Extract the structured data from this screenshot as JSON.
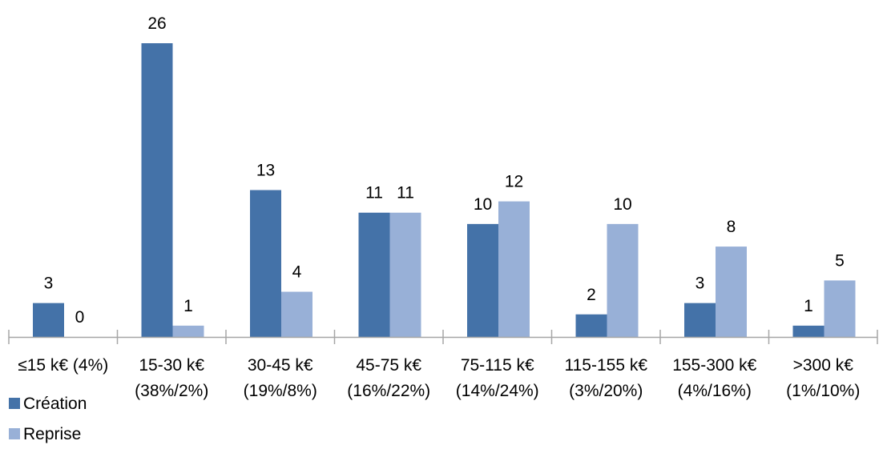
{
  "chart_data": {
    "type": "bar",
    "categories": [
      [
        "≤15 k€ (4%)"
      ],
      [
        "15-30 k€",
        "(38%/2%)"
      ],
      [
        "30-45 k€",
        "(19%/8%)"
      ],
      [
        "45-75 k€",
        "(16%/22%)"
      ],
      [
        "75-115 k€",
        "(14%/24%)"
      ],
      [
        "115-155 k€",
        "(3%/20%)"
      ],
      [
        "155-300 k€",
        "(4%/16%)"
      ],
      [
        ">300 k€",
        "(1%/10%)"
      ]
    ],
    "series": [
      {
        "name": "Création",
        "color": "#4472A8",
        "values": [
          3,
          26,
          13,
          11,
          10,
          2,
          3,
          1
        ]
      },
      {
        "name": "Reprise",
        "color": "#98B0D7",
        "values": [
          0,
          1,
          4,
          11,
          12,
          10,
          8,
          5
        ]
      }
    ],
    "ylim": [
      0,
      26
    ],
    "grid": false,
    "legend_position": "bottom-left",
    "axis_color": "#A6A6A6"
  }
}
